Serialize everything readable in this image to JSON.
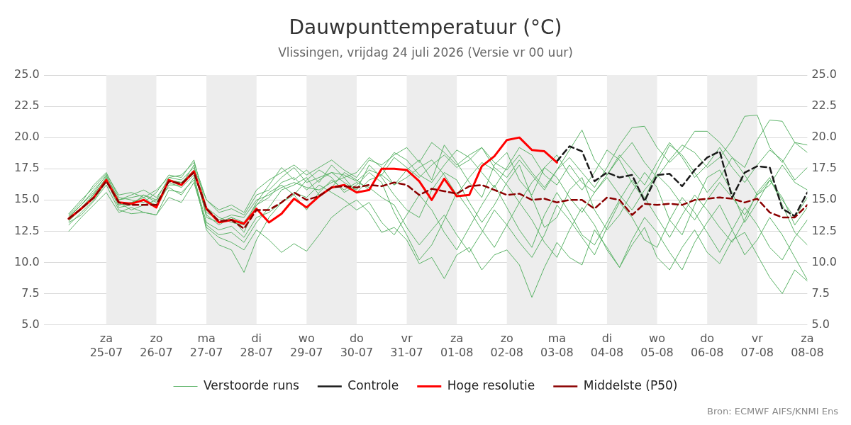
{
  "chart_data": {
    "type": "line",
    "title": "Dauwpunttemperatuur (°C)",
    "subtitle": "Vlissingen, vrijdag 24 juli 2026 (Versie vr 00 uur)",
    "annotations": [
      "Bron: ECMWF AIFS/KNMI Ens"
    ],
    "x": [
      "2026-07-24T06:00",
      "2026-07-24T12:00",
      "2026-07-24T18:00",
      "2026-07-25T00:00",
      "2026-07-25T06:00",
      "2026-07-25T12:00",
      "2026-07-25T18:00",
      "2026-07-26T00:00",
      "2026-07-26T06:00",
      "2026-07-26T12:00",
      "2026-07-26T18:00",
      "2026-07-27T00:00",
      "2026-07-27T06:00",
      "2026-07-27T12:00",
      "2026-07-27T18:00",
      "2026-07-28T00:00",
      "2026-07-28T06:00",
      "2026-07-28T12:00",
      "2026-07-28T18:00",
      "2026-07-29T00:00",
      "2026-07-29T06:00",
      "2026-07-29T12:00",
      "2026-07-29T18:00",
      "2026-07-30T00:00",
      "2026-07-30T06:00",
      "2026-07-30T12:00",
      "2026-07-30T18:00",
      "2026-07-31T00:00",
      "2026-07-31T06:00",
      "2026-07-31T12:00",
      "2026-07-31T18:00",
      "2026-08-01T00:00",
      "2026-08-01T06:00",
      "2026-08-01T12:00",
      "2026-08-01T18:00",
      "2026-08-02T00:00",
      "2026-08-02T06:00",
      "2026-08-02T12:00",
      "2026-08-02T18:00",
      "2026-08-03T00:00",
      "2026-08-03T06:00",
      "2026-08-03T12:00",
      "2026-08-03T18:00",
      "2026-08-04T00:00",
      "2026-08-04T06:00",
      "2026-08-04T12:00",
      "2026-08-04T18:00",
      "2026-08-05T00:00",
      "2026-08-05T06:00",
      "2026-08-05T12:00",
      "2026-08-05T18:00",
      "2026-08-06T00:00",
      "2026-08-06T06:00",
      "2026-08-06T12:00",
      "2026-08-06T18:00",
      "2026-08-07T00:00",
      "2026-08-07T06:00",
      "2026-08-07T12:00",
      "2026-08-07T18:00",
      "2026-08-08T00:00"
    ],
    "xlim": [
      "2026-07-23T18:00",
      "2026-08-08T00:00"
    ],
    "xticks": [
      {
        "value": "2026-07-25",
        "label": "za\n25-07"
      },
      {
        "value": "2026-07-26",
        "label": "zo\n26-07"
      },
      {
        "value": "2026-07-27",
        "label": "ma\n27-07"
      },
      {
        "value": "2026-07-28",
        "label": "di\n28-07"
      },
      {
        "value": "2026-07-29",
        "label": "wo\n29-07"
      },
      {
        "value": "2026-07-30",
        "label": "do\n30-07"
      },
      {
        "value": "2026-07-31",
        "label": "vr\n31-07"
      },
      {
        "value": "2026-08-01",
        "label": "za\n01-08"
      },
      {
        "value": "2026-08-02",
        "label": "zo\n02-08"
      },
      {
        "value": "2026-08-03",
        "label": "ma\n03-08"
      },
      {
        "value": "2026-08-04",
        "label": "di\n04-08"
      },
      {
        "value": "2026-08-05",
        "label": "wo\n05-08"
      },
      {
        "value": "2026-08-06",
        "label": "do\n06-08"
      },
      {
        "value": "2026-08-07",
        "label": "vr\n07-08"
      },
      {
        "value": "2026-08-08",
        "label": "za\n08-08"
      }
    ],
    "ylim": [
      5,
      25
    ],
    "yticks": [
      {
        "value": 5,
        "label": "5.0"
      },
      {
        "value": 7.5,
        "label": "7.5"
      },
      {
        "value": 10,
        "label": "10.0"
      },
      {
        "value": 12.5,
        "label": "12.5"
      },
      {
        "value": 15,
        "label": "15.0"
      },
      {
        "value": 17.5,
        "label": "17.5"
      },
      {
        "value": 20,
        "label": "20.0"
      },
      {
        "value": 22.5,
        "label": "22.5"
      },
      {
        "value": 25,
        "label": "25.0"
      }
    ],
    "y2lim": [
      5,
      25
    ],
    "y2ticks": [
      {
        "value": 5,
        "label": "5.0"
      },
      {
        "value": 7.5,
        "label": "7.5"
      },
      {
        "value": 10,
        "label": "10.0"
      },
      {
        "value": 12.5,
        "label": "12.5"
      },
      {
        "value": 15,
        "label": "15.0"
      },
      {
        "value": 17.5,
        "label": "17.5"
      },
      {
        "value": 20,
        "label": "20.0"
      },
      {
        "value": 22.5,
        "label": "22.5"
      },
      {
        "value": 25,
        "label": "25.0"
      }
    ],
    "bands": [
      {
        "axis": "x",
        "from": "2026-07-25",
        "to": "2026-07-26",
        "color": "#ededed"
      },
      {
        "axis": "x",
        "from": "2026-07-27",
        "to": "2026-07-28",
        "color": "#ededed"
      },
      {
        "axis": "x",
        "from": "2026-07-29",
        "to": "2026-07-30",
        "color": "#ededed"
      },
      {
        "axis": "x",
        "from": "2026-07-31",
        "to": "2026-08-01",
        "color": "#ededed"
      },
      {
        "axis": "x",
        "from": "2026-08-02",
        "to": "2026-08-03",
        "color": "#ededed"
      },
      {
        "axis": "x",
        "from": "2026-08-04",
        "to": "2026-08-05",
        "color": "#ededed"
      },
      {
        "axis": "x",
        "from": "2026-08-06",
        "to": "2026-08-07",
        "color": "#ededed"
      }
    ],
    "grid": "y",
    "legend": "bottom",
    "marker": "none",
    "series": [
      {
        "name": "Verstoorde runs",
        "color": "#5cb368",
        "values": [
          13.7,
          14.6,
          15.6,
          17.0,
          15.0,
          15.2,
          15.4,
          15.0,
          16.8,
          16.6,
          17.6,
          15.0,
          14.0,
          14.3,
          13.8,
          15.4,
          15.8,
          16.8,
          17.6,
          16.4,
          16.8,
          17.2,
          17.0,
          16.5,
          17.4,
          17.0,
          18.4,
          17.6,
          16.8,
          17.8,
          18.6,
          17.6,
          18.2,
          19.2,
          18.0,
          17.4,
          18.6,
          17.2,
          16.0,
          17.4,
          19.0,
          20.6,
          18.2,
          17.0,
          18.4,
          19.6,
          18.0,
          16.8,
          18.2,
          19.4,
          18.8,
          17.6,
          18.4,
          19.8,
          21.7,
          21.8,
          19.2,
          18.0,
          19.6,
          19.4
        ]
      },
      {
        "color": "#5cb368",
        "values": [
          13.2,
          13.8,
          14.9,
          16.2,
          14.2,
          13.9,
          14.0,
          13.8,
          15.8,
          15.6,
          16.6,
          12.8,
          12.0,
          11.6,
          11.0,
          12.6,
          11.8,
          10.8,
          11.5,
          10.9,
          12.2,
          13.6,
          14.4,
          15.0,
          14.0,
          12.4,
          12.8,
          11.8,
          9.9,
          10.4,
          8.7,
          10.6,
          11.2,
          9.4,
          10.6,
          11.0,
          9.8,
          7.2,
          9.6,
          11.6,
          10.4,
          9.8,
          12.6,
          11.2,
          9.6,
          11.4,
          12.8,
          10.4,
          9.4,
          11.2,
          12.6,
          10.8,
          9.9,
          11.8,
          12.4,
          10.6,
          8.8,
          7.5,
          9.4,
          8.5
        ]
      },
      {
        "color": "#5cb368",
        "values": [
          13.5,
          14.4,
          15.4,
          16.8,
          14.6,
          14.8,
          15.2,
          14.4,
          16.2,
          16.2,
          17.8,
          13.6,
          13.2,
          13.6,
          12.4,
          14.6,
          15.2,
          16.4,
          16.8,
          15.8,
          16.6,
          17.2,
          16.4,
          15.8,
          17.8,
          16.8,
          15.4,
          14.2,
          13.6,
          15.8,
          17.2,
          16.6,
          14.8,
          13.2,
          14.6,
          16.4,
          17.8,
          15.2,
          12.8,
          13.6,
          15.8,
          16.8,
          14.2,
          12.6,
          13.8,
          15.6,
          17.2,
          16.0,
          13.4,
          12.2,
          14.6,
          16.8,
          17.4,
          15.6,
          13.2,
          14.8,
          16.6,
          15.2,
          13.0,
          14.4
        ]
      },
      {
        "color": "#5cb368",
        "values": [
          13.0,
          14.0,
          15.0,
          16.4,
          14.8,
          14.2,
          14.6,
          15.0,
          16.0,
          15.4,
          16.8,
          13.2,
          12.6,
          12.9,
          12.0,
          13.6,
          14.0,
          14.8,
          15.4,
          14.2,
          15.6,
          16.6,
          15.8,
          16.4,
          16.0,
          15.2,
          14.6,
          12.8,
          11.4,
          12.6,
          13.8,
          12.2,
          10.8,
          12.4,
          14.2,
          13.0,
          11.6,
          10.4,
          12.2,
          14.6,
          13.4,
          12.0,
          10.6,
          12.8,
          14.8,
          13.6,
          11.8,
          11.2,
          13.4,
          15.2,
          14.0,
          12.4,
          10.8,
          12.6,
          14.4,
          13.0,
          11.2,
          10.2,
          12.0,
          13.4
        ]
      },
      {
        "color": "#5cb368",
        "values": [
          13.8,
          14.8,
          16.2,
          17.2,
          15.2,
          15.0,
          14.8,
          15.6,
          17.0,
          16.8,
          18.2,
          14.4,
          13.6,
          13.2,
          13.0,
          14.8,
          16.2,
          17.6,
          16.6,
          17.4,
          16.4,
          17.8,
          16.8,
          17.2,
          18.4,
          17.6,
          16.2,
          17.4,
          18.2,
          16.6,
          19.4,
          18.0,
          16.4,
          15.2,
          17.8,
          18.8,
          16.6,
          15.4,
          17.6,
          18.6,
          17.0,
          15.8,
          17.2,
          19.0,
          18.2,
          16.4,
          15.0,
          17.4,
          19.4,
          18.6,
          17.2,
          15.6,
          16.8,
          18.4,
          17.0,
          15.4,
          16.2,
          17.8,
          16.4,
          15.8
        ]
      },
      {
        "color": "#5cb368",
        "values": [
          13.4,
          14.2,
          15.2,
          16.6,
          14.4,
          14.6,
          15.4,
          14.8,
          16.4,
          16.0,
          17.0,
          12.6,
          11.4,
          11.0,
          9.2,
          11.8,
          13.6,
          14.8,
          15.6,
          15.2,
          16.2,
          15.6,
          15.0,
          14.2,
          14.8,
          13.2,
          12.2,
          13.8,
          15.4,
          14.2,
          12.4,
          11.0,
          12.8,
          14.6,
          16.2,
          14.4,
          12.6,
          11.2,
          13.8,
          15.6,
          14.0,
          12.2,
          11.4,
          13.2,
          15.0,
          16.6,
          15.2,
          13.6,
          12.0,
          13.8,
          15.4,
          14.2,
          12.8,
          11.6,
          13.4,
          15.6,
          16.8,
          14.6,
          12.4,
          11.4
        ]
      },
      {
        "color": "#5cb368",
        "values": [
          12.5,
          13.6,
          14.6,
          15.6,
          14.0,
          14.4,
          14.0,
          13.8,
          15.2,
          14.8,
          16.4,
          13.0,
          12.2,
          12.4,
          11.6,
          13.2,
          14.4,
          15.8,
          16.2,
          16.8,
          15.4,
          16.0,
          17.2,
          16.6,
          15.8,
          17.4,
          18.8,
          18.2,
          17.0,
          16.4,
          17.8,
          19.0,
          18.4,
          17.2,
          16.0,
          17.6,
          19.2,
          18.6,
          17.0,
          16.2,
          17.8,
          16.4,
          15.6,
          17.0,
          18.6,
          17.4,
          16.2,
          18.0,
          19.6,
          18.4,
          16.8,
          17.8,
          19.2,
          17.6,
          16.4,
          17.8,
          19.0,
          18.2,
          16.6,
          17.6
        ]
      },
      {
        "color": "#5cb368",
        "values": [
          13.6,
          14.6,
          15.8,
          16.9,
          15.0,
          15.4,
          15.8,
          15.2,
          16.6,
          16.4,
          17.4,
          13.8,
          13.0,
          13.6,
          13.2,
          14.6,
          15.6,
          16.2,
          15.4,
          16.6,
          17.4,
          16.8,
          15.6,
          16.2,
          17.2,
          16.4,
          14.0,
          12.2,
          10.2,
          11.4,
          13.4,
          15.6,
          14.2,
          12.6,
          11.2,
          13.0,
          14.8,
          13.4,
          11.6,
          10.4,
          12.6,
          14.4,
          13.0,
          11.0,
          9.6,
          11.8,
          13.6,
          12.4,
          10.8,
          9.4,
          11.6,
          13.2,
          14.6,
          12.6,
          10.6,
          11.8,
          13.6,
          12.2,
          10.4,
          8.6
        ]
      },
      {
        "color": "#5cb368",
        "values": [
          13.3,
          14.3,
          15.5,
          16.7,
          14.6,
          14.8,
          15.0,
          14.6,
          16.6,
          16.4,
          17.2,
          14.0,
          13.4,
          13.8,
          13.6,
          15.0,
          15.4,
          16.0,
          16.4,
          16.0,
          15.8,
          16.4,
          16.8,
          15.6,
          16.6,
          17.0,
          16.2,
          16.8,
          17.6,
          18.2,
          17.0,
          15.4,
          16.8,
          18.0,
          17.4,
          16.2,
          14.8,
          16.4,
          17.6,
          16.8,
          15.2,
          14.0,
          15.6,
          16.8,
          15.4,
          14.2,
          15.8,
          17.0,
          16.0,
          14.6,
          13.4,
          15.0,
          16.4,
          15.2,
          13.8,
          15.4,
          16.6,
          15.0,
          13.6,
          15.2
        ]
      },
      {
        "color": "#5cb368",
        "values": [
          13.9,
          15.0,
          16.0,
          17.1,
          15.4,
          15.6,
          15.2,
          15.8,
          16.8,
          17.0,
          18.0,
          15.0,
          14.2,
          14.6,
          14.0,
          15.8,
          16.6,
          17.2,
          17.8,
          17.0,
          17.6,
          18.2,
          17.4,
          16.8,
          18.2,
          17.8,
          18.6,
          19.2,
          18.0,
          19.6,
          18.8,
          17.8,
          18.6,
          19.2,
          17.6,
          16.8,
          18.2,
          17.0,
          15.8,
          17.4,
          18.4,
          17.2,
          16.0,
          17.6,
          19.4,
          20.8,
          20.9,
          19.2,
          18.0,
          19.0,
          20.5,
          20.5,
          19.6,
          18.4,
          17.6,
          19.8,
          21.4,
          21.3,
          19.6,
          18.8
        ]
      },
      {
        "name": "Controle",
        "color": "#1a1a1a",
        "line_style": "dashed",
        "x": [
          "2026-08-03T00:00",
          "2026-08-03T06:00",
          "2026-08-03T12:00",
          "2026-08-03T18:00",
          "2026-08-04T00:00",
          "2026-08-04T06:00",
          "2026-08-04T12:00",
          "2026-08-04T18:00",
          "2026-08-05T00:00",
          "2026-08-05T06:00",
          "2026-08-05T12:00",
          "2026-08-05T18:00",
          "2026-08-06T00:00",
          "2026-08-06T06:00",
          "2026-08-06T12:00",
          "2026-08-06T18:00",
          "2026-08-07T00:00",
          "2026-08-07T06:00",
          "2026-08-07T12:00",
          "2026-08-07T18:00",
          "2026-08-08T00:00"
        ],
        "values": [
          18.1,
          19.3,
          18.9,
          16.5,
          17.2,
          16.8,
          17.0,
          14.9,
          17.0,
          17.1,
          16.1,
          17.4,
          18.4,
          18.9,
          15.2,
          17.2,
          17.7,
          17.6,
          14.3,
          13.7,
          15.6
        ]
      },
      {
        "name": "Hoge resolutie",
        "color": "#ff0000",
        "x": [
          "2026-07-24T06:00",
          "2026-07-24T12:00",
          "2026-07-24T18:00",
          "2026-07-25T00:00",
          "2026-07-25T06:00",
          "2026-07-25T12:00",
          "2026-07-25T18:00",
          "2026-07-26T00:00",
          "2026-07-26T06:00",
          "2026-07-26T12:00",
          "2026-07-26T18:00",
          "2026-07-27T00:00",
          "2026-07-27T06:00",
          "2026-07-27T12:00",
          "2026-07-27T18:00",
          "2026-07-28T00:00",
          "2026-07-28T06:00",
          "2026-07-28T12:00",
          "2026-07-28T18:00",
          "2026-07-29T00:00",
          "2026-07-29T06:00",
          "2026-07-29T12:00",
          "2026-07-29T18:00",
          "2026-07-30T00:00",
          "2026-07-30T06:00",
          "2026-07-30T12:00",
          "2026-07-30T18:00",
          "2026-07-31T00:00",
          "2026-07-31T06:00",
          "2026-07-31T12:00",
          "2026-07-31T18:00",
          "2026-08-01T00:00",
          "2026-08-01T06:00",
          "2026-08-01T12:00",
          "2026-08-01T18:00",
          "2026-08-02T00:00",
          "2026-08-02T06:00",
          "2026-08-02T12:00",
          "2026-08-02T18:00",
          "2026-08-03T00:00"
        ],
        "values": [
          13.5,
          14.3,
          15.2,
          16.6,
          14.8,
          14.7,
          15.0,
          14.4,
          16.6,
          16.2,
          17.3,
          14.3,
          13.2,
          13.4,
          13.1,
          14.3,
          13.2,
          13.9,
          15.1,
          14.4,
          15.3,
          16.0,
          16.2,
          15.6,
          15.8,
          17.5,
          17.5,
          17.4,
          16.5,
          15.0,
          16.7,
          15.3,
          15.4,
          17.7,
          18.5,
          19.8,
          20.0,
          19.0,
          18.9,
          18.0
        ]
      },
      {
        "name": "Middelste (P50)",
        "color": "#8b0000",
        "line_style": "dashed",
        "values": [
          13.5,
          14.3,
          15.2,
          16.5,
          14.8,
          14.6,
          14.6,
          14.6,
          16.5,
          16.3,
          17.2,
          14.3,
          13.3,
          13.4,
          12.7,
          14.2,
          14.2,
          14.8,
          15.6,
          15.0,
          15.3,
          16.0,
          16.1,
          16.0,
          16.2,
          16.1,
          16.4,
          16.2,
          15.4,
          15.9,
          15.7,
          15.5,
          16.1,
          16.2,
          15.8,
          15.4,
          15.5,
          15.0,
          15.1,
          14.8,
          15.0,
          15.0,
          14.3,
          15.2,
          15.0,
          13.8,
          14.7,
          14.6,
          14.7,
          14.6,
          15.0,
          15.1,
          15.2,
          15.1,
          14.8,
          15.1,
          14.0,
          13.6,
          13.6,
          14.6
        ]
      }
    ]
  }
}
